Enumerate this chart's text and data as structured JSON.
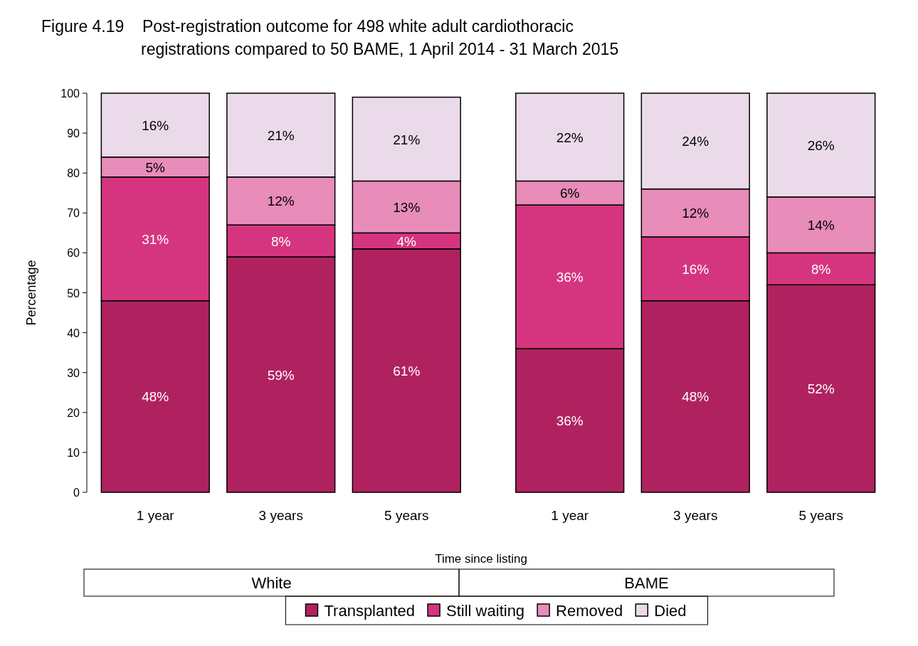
{
  "chart_data": {
    "type": "bar",
    "stacked": true,
    "title": "Figure 4.19    Post-registration outcome for 498 white adult cardiothoracic registrations compared to 50 BAME, 1 April 2014 - 31 March 2015",
    "categories": [
      "1 year",
      "3 years",
      "5 years",
      "1 year",
      "3 years",
      "5 years"
    ],
    "series": [
      {
        "name": "Transplanted",
        "color": "#b0225f",
        "values": [
          48,
          59,
          61,
          36,
          48,
          52
        ],
        "value_labels": [
          "48%",
          "59%",
          "61%",
          "36%",
          "48%",
          "52%"
        ]
      },
      {
        "name": "Still waiting",
        "color": "#d5357f",
        "values": [
          31,
          8,
          4,
          36,
          16,
          8
        ],
        "value_labels": [
          "31%",
          "8%",
          "4%",
          "36%",
          "16%",
          "8%"
        ]
      },
      {
        "name": "Removed",
        "color": "#e88cb9",
        "values": [
          5,
          12,
          13,
          6,
          12,
          14
        ],
        "value_labels": [
          "5%",
          "12%",
          "13%",
          "6%",
          "12%",
          "14%"
        ]
      },
      {
        "name": "Died",
        "color": "#ebdbea",
        "values": [
          16,
          21,
          21,
          22,
          24,
          26
        ],
        "value_labels": [
          "16%",
          "21%",
          "21%",
          "22%",
          "24%",
          "26%"
        ]
      }
    ],
    "ylim": [
      0,
      100
    ],
    "yticks": [
      0,
      10,
      20,
      30,
      40,
      50,
      60,
      70,
      80,
      90,
      100
    ],
    "xlabel": "Time since listing",
    "ylabel": "Percentage",
    "annotations": [
      "White",
      "BAME"
    ],
    "legend": "bottom"
  }
}
